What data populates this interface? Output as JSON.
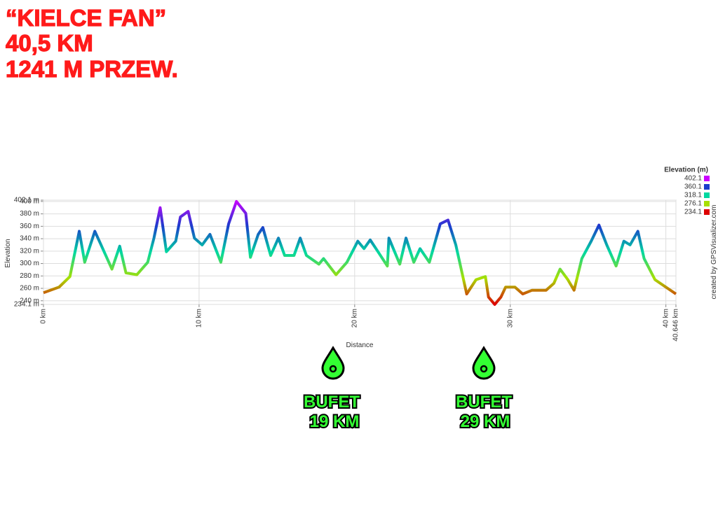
{
  "chart_data": {
    "type": "line",
    "header": [
      "“KIELCE FAN”",
      "40,5 KM",
      "1241 M PRZEW."
    ],
    "x_label": "Distance",
    "y_label": "Elevation",
    "x": [
      0,
      1,
      1.7,
      2.3,
      2.65,
      3.3,
      3.7,
      4.4,
      4.9,
      5.3,
      6,
      6.7,
      7.1,
      7.5,
      7.9,
      8.5,
      8.8,
      9.3,
      9.7,
      10.2,
      10.7,
      11.4,
      11.9,
      12.4,
      13,
      13.3,
      13.8,
      14.1,
      14.6,
      15.1,
      15.5,
      16.1,
      16.5,
      16.9,
      17.7,
      18,
      18.8,
      19.5,
      20.2,
      20.6,
      21,
      21.5,
      22.1,
      22.2,
      22.9,
      23.3,
      23.8,
      24.2,
      24.8,
      25.5,
      26,
      26.5,
      27.2,
      27.8,
      28.4,
      28.6,
      29,
      29.4,
      29.7,
      30.3,
      30.8,
      31.4,
      32.3,
      32.8,
      33.2,
      33.7,
      34.1,
      34.6,
      35.2,
      35.7,
      36.2,
      36.8,
      37.3,
      37.7,
      38.2,
      38.6,
      39.3,
      40,
      40.646
    ],
    "series": [
      {
        "name": "Elevation",
        "values": [
          253,
          262,
          279,
          352,
          302,
          352,
          330,
          291,
          328,
          285,
          282,
          302,
          341,
          390,
          319,
          336,
          375,
          384,
          341,
          330,
          347,
          302,
          364,
          400,
          381,
          310,
          347,
          358,
          313,
          341,
          313,
          313,
          341,
          313,
          299,
          308,
          282,
          302,
          336,
          324,
          338,
          319,
          296,
          341,
          299,
          341,
          302,
          324,
          302,
          364,
          370,
          330,
          251,
          274,
          279,
          246,
          234.1,
          246,
          262,
          262,
          251,
          257,
          257,
          268,
          291,
          274,
          257,
          308,
          336,
          362,
          330,
          296,
          336,
          330,
          352,
          308,
          274,
          262,
          251
        ]
      }
    ],
    "xlim": [
      0,
      40.646
    ],
    "ylim": [
      234.1,
      402.1
    ],
    "xticks": [
      {
        "value": 0,
        "label": "0 km"
      },
      {
        "value": 10,
        "label": "10 km"
      },
      {
        "value": 20,
        "label": "20 km"
      },
      {
        "value": 30,
        "label": "30 km"
      },
      {
        "value": 40,
        "label": "40 km"
      },
      {
        "value": 40.646,
        "label": "40.646 km"
      }
    ],
    "yticks": [
      {
        "value": 234.1,
        "label": "234.1 m"
      },
      {
        "value": 240,
        "label": "240 m"
      },
      {
        "value": 260,
        "label": "260 m"
      },
      {
        "value": 280,
        "label": "280 m"
      },
      {
        "value": 300,
        "label": "300 m"
      },
      {
        "value": 320,
        "label": "320 m"
      },
      {
        "value": 340,
        "label": "340 m"
      },
      {
        "value": 360,
        "label": "360 m"
      },
      {
        "value": 380,
        "label": "380 m"
      },
      {
        "value": 400,
        "label": "400 m"
      },
      {
        "value": 402.1,
        "label": "402.1 m"
      }
    ],
    "grid": true,
    "legend": {
      "title": "Elevation (m)",
      "entries": [
        {
          "value": 402.1,
          "color": "#cc00ff"
        },
        {
          "value": 360.1,
          "color": "#1a3ccc"
        },
        {
          "value": 318.1,
          "color": "#00d8a0"
        },
        {
          "value": 276.1,
          "color": "#a8e000"
        },
        {
          "value": 234.1,
          "color": "#dd0000"
        }
      ]
    },
    "stations": [
      [
        "BUFET",
        "19 KM"
      ],
      [
        "BUFET",
        "29 KM"
      ]
    ],
    "credit": "created by GPSVisualizer.com"
  }
}
